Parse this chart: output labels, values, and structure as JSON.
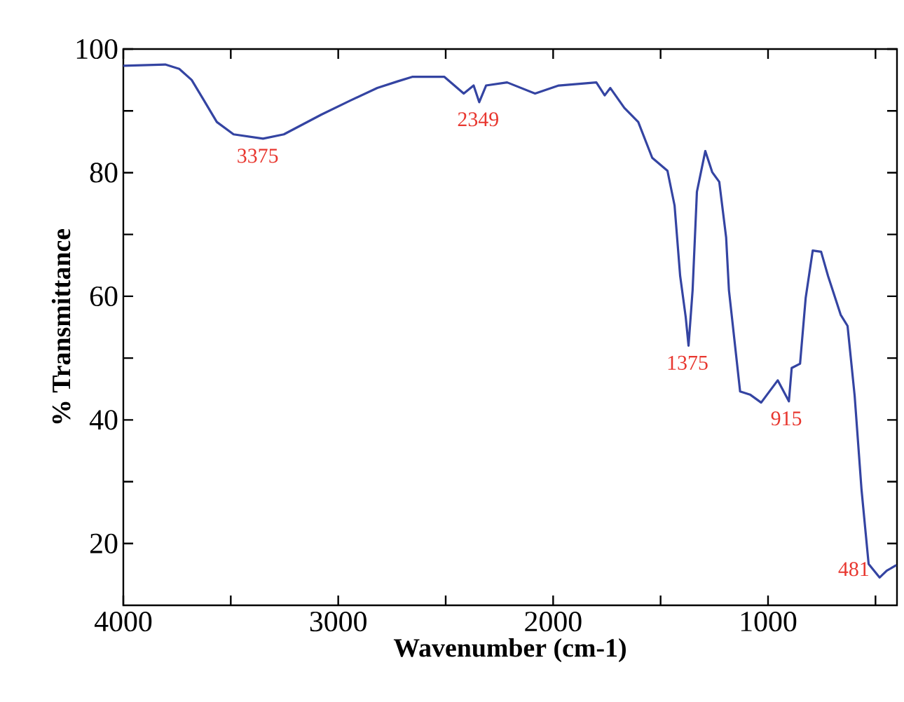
{
  "chart_data": {
    "type": "line",
    "xlabel": "Wavenumber (cm-1)",
    "ylabel": "% Transmittance",
    "xlim": [
      4000,
      400
    ],
    "ylim": [
      10,
      100
    ],
    "xticks": [
      4000,
      {
        "value": 3500,
        "label": null
      },
      3000,
      {
        "value": 2500,
        "label": null
      },
      2000,
      {
        "value": 1500,
        "label": null
      },
      1000,
      {
        "value": 500,
        "label": null
      }
    ],
    "yticks": [
      20,
      {
        "value": 30,
        "label": null
      },
      40,
      {
        "value": 50,
        "label": null
      },
      60,
      {
        "value": 70,
        "label": null
      },
      80,
      {
        "value": 90,
        "label": null
      },
      100
    ],
    "x": [
      4000,
      3805,
      3740,
      3682,
      3630,
      3565,
      3487,
      3350,
      3253,
      3078,
      2948,
      2818,
      2721,
      2656,
      2506,
      2416,
      2370,
      2344,
      2312,
      2214,
      2084,
      1974,
      1799,
      1760,
      1734,
      1669,
      1604,
      1539,
      1468,
      1435,
      1409,
      1383,
      1370,
      1351,
      1331,
      1292,
      1260,
      1227,
      1195,
      1182,
      1130,
      1084,
      1032,
      955,
      903,
      890,
      851,
      825,
      792,
      753,
      721,
      662,
      630,
      597,
      565,
      532,
      481,
      448,
      403
    ],
    "series": [
      {
        "color": "#3444a2",
        "values": [
          97.3,
          97.5,
          96.8,
          95,
          92,
          88.2,
          86.2,
          85.5,
          86.2,
          89.4,
          91.6,
          93.7,
          94.8,
          95.5,
          95.5,
          92.8,
          94.1,
          91.4,
          94.1,
          94.6,
          92.8,
          94.1,
          94.6,
          92.5,
          93.7,
          90.5,
          88.2,
          82.4,
          80.3,
          74.7,
          63.3,
          56.6,
          52,
          61,
          76.9,
          83.5,
          80.1,
          78.5,
          69.5,
          61,
          44.6,
          44.1,
          42.8,
          46.4,
          43,
          48.4,
          49.1,
          59.7,
          67.4,
          67.2,
          63.3,
          57,
          55.2,
          43.9,
          28.7,
          16.7,
          14.5,
          15.6,
          16.5
        ]
      }
    ],
    "annotations": [
      {
        "text": "3375",
        "x": 3375,
        "y": 85.5
      },
      {
        "text": "2349",
        "x": 2349,
        "y": 91.4
      },
      {
        "text": "1375",
        "x": 1375,
        "y": 52
      },
      {
        "text": "915",
        "x": 915,
        "y": 43
      },
      {
        "text": "481",
        "x": 481,
        "y": 14.5
      }
    ]
  }
}
